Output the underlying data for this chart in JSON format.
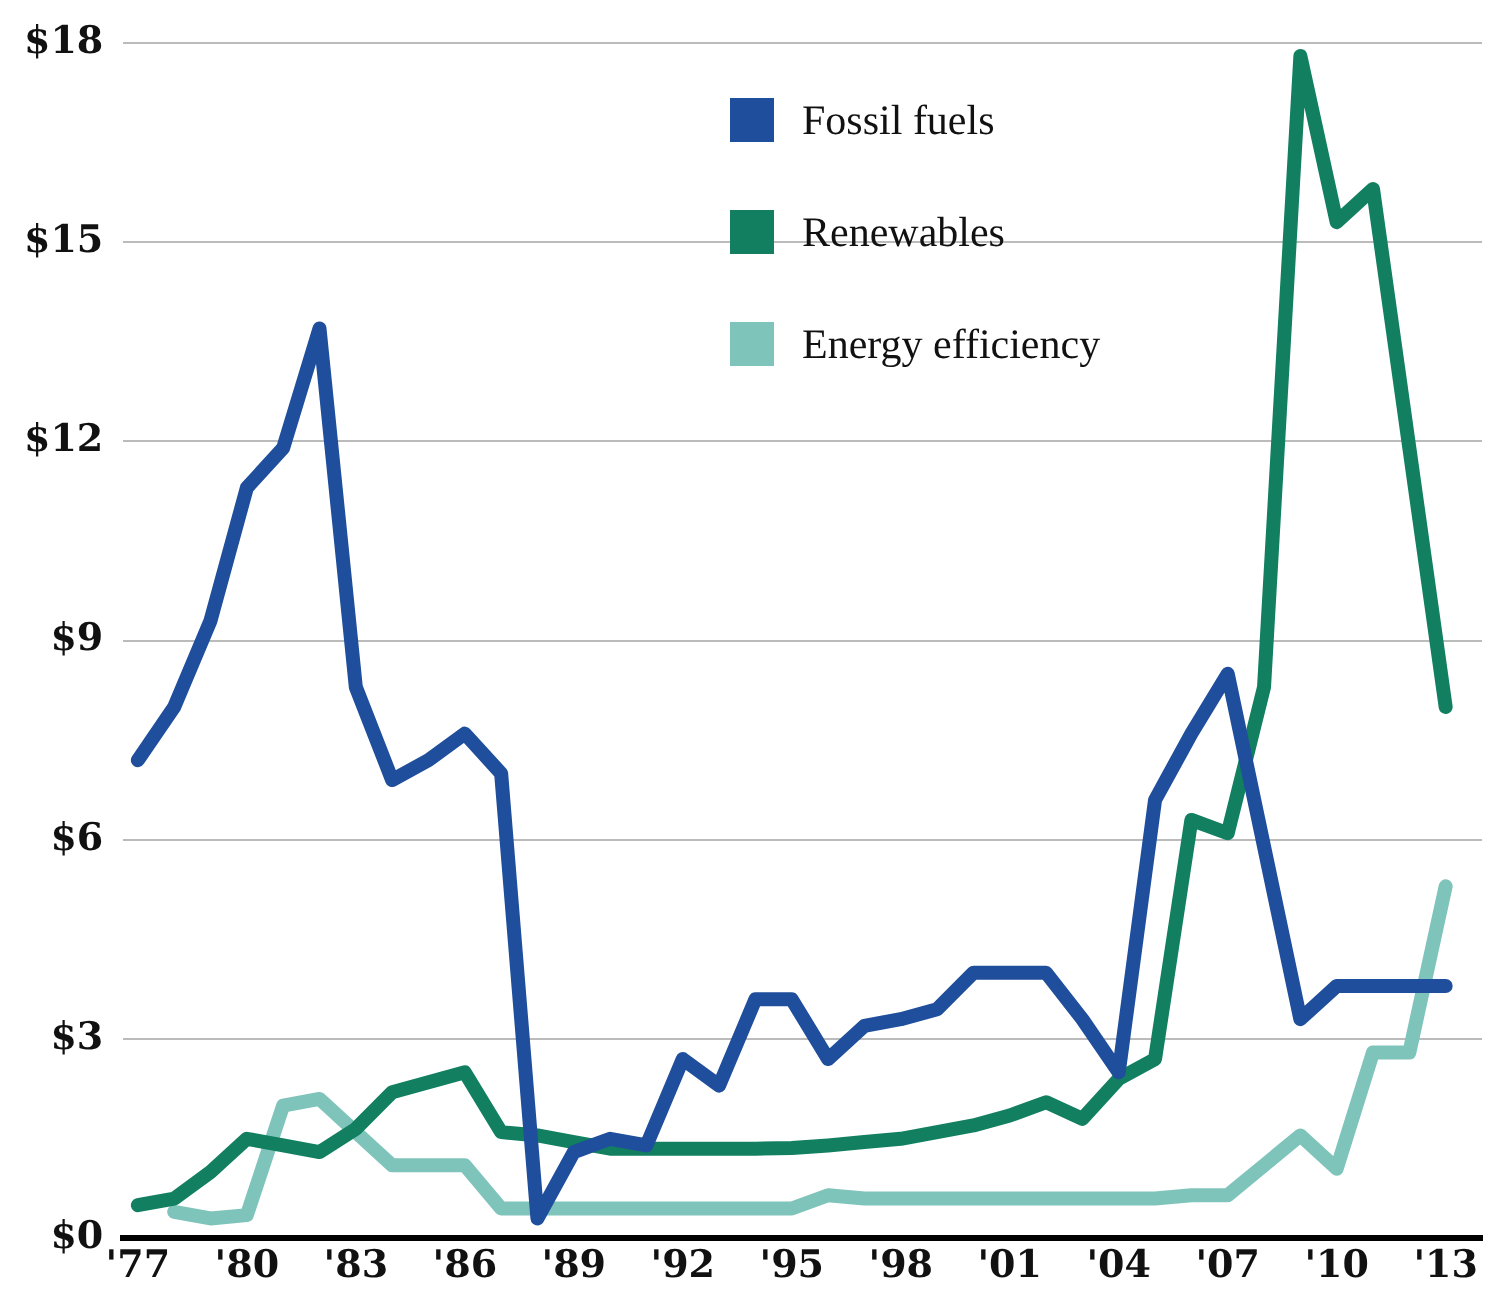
{
  "chart_data": {
    "type": "line",
    "x": [
      1977,
      1978,
      1979,
      1980,
      1981,
      1982,
      1983,
      1984,
      1985,
      1986,
      1987,
      1988,
      1989,
      1990,
      1991,
      1992,
      1993,
      1994,
      1995,
      1996,
      1997,
      1998,
      1999,
      2000,
      2001,
      2002,
      2003,
      2004,
      2005,
      2006,
      2007,
      2008,
      2009,
      2010,
      2011,
      2012,
      2013
    ],
    "series": [
      {
        "name": "Fossil fuels",
        "color": "#1f4e9c",
        "values": [
          7.2,
          8.0,
          9.3,
          11.3,
          11.9,
          13.7,
          8.3,
          6.9,
          7.2,
          7.6,
          7.0,
          0.3,
          1.3,
          1.5,
          1.4,
          2.7,
          2.3,
          3.6,
          3.6,
          2.7,
          3.2,
          3.3,
          3.45,
          4.0,
          4.0,
          4.0,
          3.3,
          2.5,
          6.6,
          7.6,
          8.5,
          5.9,
          3.3,
          3.8,
          3.8,
          3.8,
          3.8
        ]
      },
      {
        "name": "Renewables",
        "color": "#128060",
        "values": [
          0.5,
          0.6,
          1.0,
          1.5,
          1.4,
          1.3,
          1.65,
          2.2,
          2.35,
          2.5,
          1.6,
          1.55,
          1.45,
          1.35,
          1.35,
          1.35,
          1.35,
          1.35,
          1.36,
          1.4,
          1.45,
          1.5,
          1.6,
          1.7,
          1.85,
          2.05,
          1.8,
          2.4,
          2.7,
          6.3,
          6.1,
          8.3,
          17.8,
          15.3,
          15.8,
          11.9,
          8.0
        ]
      },
      {
        "name": "Energy efficiency",
        "color": "#7fc4bb",
        "values": [
          null,
          0.4,
          0.3,
          0.35,
          2.0,
          2.1,
          1.6,
          1.1,
          1.1,
          1.1,
          0.45,
          0.45,
          0.45,
          0.45,
          0.45,
          0.45,
          0.45,
          0.45,
          0.45,
          0.65,
          0.6,
          0.6,
          0.6,
          0.6,
          0.6,
          0.6,
          0.6,
          0.6,
          0.6,
          0.65,
          0.65,
          1.1,
          1.55,
          1.05,
          2.8,
          2.8,
          5.3
        ]
      }
    ],
    "xlim": [
      1976.6,
      2014
    ],
    "xticks": [
      {
        "value": 1977,
        "label": "'77"
      },
      {
        "value": 1980,
        "label": "'80"
      },
      {
        "value": 1983,
        "label": "'83"
      },
      {
        "value": 1986,
        "label": "'86"
      },
      {
        "value": 1989,
        "label": "'89"
      },
      {
        "value": 1992,
        "label": "'92"
      },
      {
        "value": 1995,
        "label": "'95"
      },
      {
        "value": 1998,
        "label": "'98"
      },
      {
        "value": 2001,
        "label": "'01"
      },
      {
        "value": 2004,
        "label": "'04"
      },
      {
        "value": 2007,
        "label": "'07"
      },
      {
        "value": 2010,
        "label": "'10"
      },
      {
        "value": 2013,
        "label": "'13"
      }
    ],
    "ylim": [
      0,
      18
    ],
    "yticks": [
      {
        "value": 0,
        "label": "$0"
      },
      {
        "value": 3,
        "label": "$3"
      },
      {
        "value": 6,
        "label": "$6"
      },
      {
        "value": 9,
        "label": "$9"
      },
      {
        "value": 12,
        "label": "$12"
      },
      {
        "value": 15,
        "label": "$15"
      },
      {
        "value": 18,
        "label": "$18"
      }
    ],
    "grid": "y",
    "legend": "top",
    "marker": "none",
    "line_style": "solid"
  }
}
